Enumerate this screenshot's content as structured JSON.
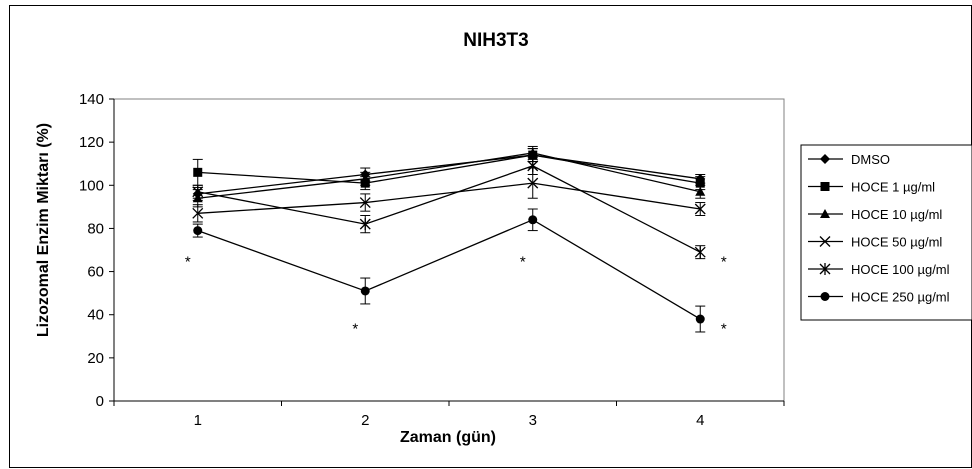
{
  "chart_data": {
    "type": "line",
    "title": "NIH3T3",
    "xlabel": "Zaman (gün)",
    "ylabel": "Lizozomal Enzim Miktarı (%)",
    "x": [
      1,
      2,
      3,
      4
    ],
    "ylim": [
      0,
      140
    ],
    "yticks": [
      0,
      20,
      40,
      60,
      80,
      100,
      120,
      140
    ],
    "grid": false,
    "legend_position": "right",
    "series": [
      {
        "name": "DMSO",
        "marker": "diamond",
        "values": [
          96,
          105,
          114,
          103
        ],
        "errors": [
          3,
          3,
          3,
          2
        ]
      },
      {
        "name": "HOCE 1 µg/ml",
        "marker": "square",
        "values": [
          106,
          101,
          114,
          101
        ],
        "errors": [
          6,
          3,
          3,
          3
        ]
      },
      {
        "name": "HOCE 10 µg/ml",
        "marker": "triangle",
        "values": [
          94,
          103,
          115,
          97
        ],
        "errors": [
          4,
          3,
          3,
          3
        ]
      },
      {
        "name": "HOCE 50 µg/ml",
        "marker": "x",
        "values": [
          87,
          92,
          101,
          89
        ],
        "errors": [
          4,
          4,
          7,
          3
        ]
      },
      {
        "name": "HOCE 100 µg/ml",
        "marker": "asterisk",
        "values": [
          97,
          82,
          109,
          69
        ],
        "errors": [
          3,
          4,
          4,
          3
        ]
      },
      {
        "name": "HOCE 250 µg/ml",
        "marker": "circle",
        "values": [
          79,
          51,
          84,
          38
        ],
        "errors": [
          3,
          6,
          5,
          6
        ]
      }
    ],
    "annotations": [
      {
        "text": "*",
        "x": 1,
        "y": 66
      },
      {
        "text": "*",
        "x": 2,
        "y": 35
      },
      {
        "text": "*",
        "x": 3,
        "y": 66
      },
      {
        "text": "*",
        "x": 4.2,
        "y": 66
      },
      {
        "text": "*",
        "x": 4.2,
        "y": 35
      }
    ]
  }
}
